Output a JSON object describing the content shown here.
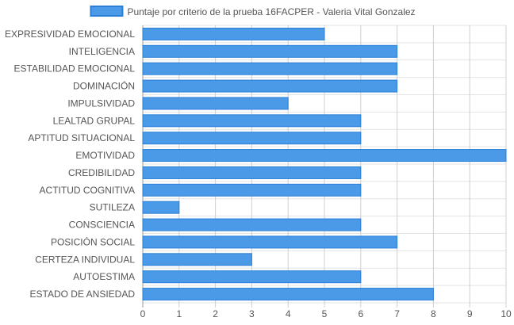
{
  "chart_data": {
    "type": "bar",
    "orientation": "horizontal",
    "categories": [
      "EXPRESIVIDAD EMOCIONAL",
      "INTELIGENCIA",
      "ESTABILIDAD EMOCIONAL",
      "DOMINACIÓN",
      "IMPULSIVIDAD",
      "LEALTAD GRUPAL",
      "APTITUD SITUACIONAL",
      "EMOTIVIDAD",
      "CREDIBILIDAD",
      "ACTITUD COGNITIVA",
      "SUTILEZA",
      "CONSCIENCIA",
      "POSICIÓN SOCIAL",
      "CERTEZA INDIVIDUAL",
      "AUTOESTIMA",
      "ESTADO DE ANSIEDAD"
    ],
    "series": [
      {
        "name": "Puntaje por criterio de la prueba 16FACPER - Valeria Vital Gonzalez",
        "values": [
          5,
          7,
          7,
          7,
          4,
          6,
          6,
          10,
          6,
          6,
          1,
          6,
          7,
          3,
          6,
          8
        ],
        "color": "#4a9ae8",
        "border_color": "#2b7fd6"
      }
    ],
    "xlim": [
      0,
      10
    ],
    "xticks": [
      "0",
      "1",
      "2",
      "3",
      "4",
      "5",
      "6",
      "7",
      "8",
      "9",
      "10"
    ],
    "grid": true,
    "legend_position": "top-center"
  }
}
